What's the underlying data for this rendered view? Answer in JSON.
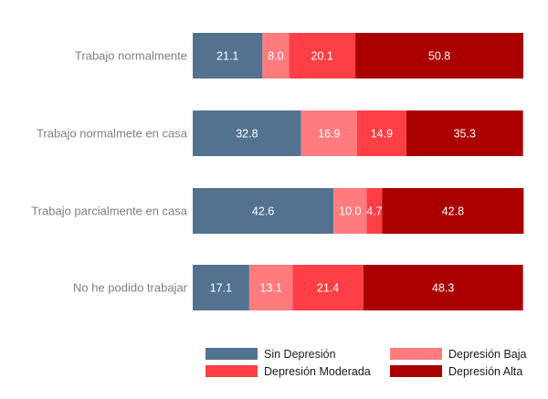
{
  "chart_data": {
    "type": "bar",
    "orientation": "horizontal",
    "stacked": true,
    "percent": true,
    "title": "",
    "xlabel": "",
    "ylabel": "",
    "xlim": [
      0,
      100
    ],
    "grid": false,
    "legend_position": "bottom-right",
    "categories": [
      "Trabajo normalmente",
      "Trabajo normalmete en casa",
      "Trabajo parcialmente en casa",
      "No he podido trabajar"
    ],
    "series": [
      {
        "name": "Sin Depresión",
        "color": "#53728f",
        "values": [
          21.1,
          32.8,
          42.6,
          17.1
        ],
        "labels": [
          "21.1",
          "32.8",
          "42.6",
          "17.1"
        ]
      },
      {
        "name": "Depresión Baja",
        "color": "#ff7b7e",
        "values": [
          8.0,
          16.9,
          10.0,
          13.1
        ],
        "labels": [
          "8.0",
          "16.9",
          "10.0",
          "13.1"
        ]
      },
      {
        "name": "Depresión Moderada",
        "color": "#ff3f46",
        "values": [
          20.1,
          14.9,
          4.7,
          21.4
        ],
        "labels": [
          "20.1",
          "14.9",
          "4.7",
          "21.4"
        ]
      },
      {
        "name": "Depresión Alta",
        "color": "#ab0000",
        "values": [
          50.8,
          35.3,
          42.8,
          48.3
        ],
        "labels": [
          "50.8",
          "35.3",
          "42.8",
          "48.3"
        ]
      }
    ],
    "legend_order": [
      "Sin Depresión",
      "Depresión Baja",
      "Depresión Moderada",
      "Depresión Alta"
    ]
  }
}
